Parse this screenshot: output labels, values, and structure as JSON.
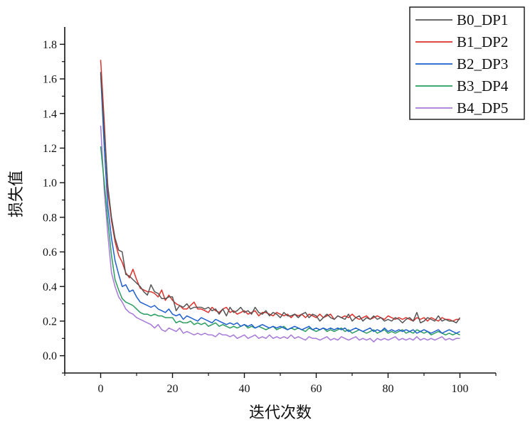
{
  "chart_data": {
    "type": "line",
    "xlabel": "迭代次数",
    "ylabel": "损失值",
    "xlim": [
      -10,
      110
    ],
    "ylim": [
      -0.1,
      1.9
    ],
    "x_ticks": [
      0,
      20,
      40,
      60,
      80,
      100
    ],
    "y_ticks": [
      0.0,
      0.2,
      0.4,
      0.6,
      0.8,
      1.0,
      1.2,
      1.4,
      1.6,
      1.8
    ],
    "x_tick_labels": [
      "0",
      "20",
      "40",
      "60",
      "80",
      "100"
    ],
    "y_tick_labels": [
      "0.0",
      "0.2",
      "0.4",
      "0.6",
      "0.8",
      "1.0",
      "1.2",
      "1.4",
      "1.6",
      "1.8"
    ],
    "grid": false,
    "legend_position": "top-right",
    "x": [
      0,
      1,
      2,
      3,
      4,
      5,
      6,
      7,
      8,
      9,
      10,
      11,
      12,
      13,
      14,
      15,
      16,
      17,
      18,
      19,
      20,
      21,
      22,
      23,
      24,
      25,
      26,
      27,
      28,
      29,
      30,
      31,
      32,
      33,
      34,
      35,
      36,
      37,
      38,
      39,
      40,
      41,
      42,
      43,
      44,
      45,
      46,
      47,
      48,
      49,
      50,
      51,
      52,
      53,
      54,
      55,
      56,
      57,
      58,
      59,
      60,
      61,
      62,
      63,
      64,
      65,
      66,
      67,
      68,
      69,
      70,
      71,
      72,
      73,
      74,
      75,
      76,
      77,
      78,
      79,
      80,
      81,
      82,
      83,
      84,
      85,
      86,
      87,
      88,
      89,
      90,
      91,
      92,
      93,
      94,
      95,
      96,
      97,
      98,
      99,
      100
    ],
    "series": [
      {
        "name": "B0_DP1",
        "color": "#555555",
        "values": [
          1.64,
          1.3,
          0.98,
          0.8,
          0.68,
          0.61,
          0.6,
          0.47,
          0.46,
          0.44,
          0.42,
          0.4,
          0.37,
          0.35,
          0.41,
          0.37,
          0.36,
          0.33,
          0.33,
          0.34,
          0.34,
          0.26,
          0.29,
          0.28,
          0.3,
          0.27,
          0.28,
          0.28,
          0.28,
          0.27,
          0.28,
          0.26,
          0.27,
          0.24,
          0.27,
          0.23,
          0.28,
          0.25,
          0.26,
          0.28,
          0.25,
          0.26,
          0.24,
          0.28,
          0.25,
          0.24,
          0.26,
          0.23,
          0.25,
          0.24,
          0.22,
          0.25,
          0.23,
          0.23,
          0.24,
          0.22,
          0.24,
          0.25,
          0.22,
          0.24,
          0.23,
          0.2,
          0.22,
          0.24,
          0.22,
          0.21,
          0.23,
          0.22,
          0.21,
          0.24,
          0.2,
          0.22,
          0.23,
          0.2,
          0.22,
          0.21,
          0.23,
          0.21,
          0.22,
          0.2,
          0.21,
          0.2,
          0.22,
          0.21,
          0.19,
          0.21,
          0.22,
          0.2,
          0.25,
          0.19,
          0.2,
          0.22,
          0.21,
          0.2,
          0.23,
          0.2,
          0.21,
          0.2,
          0.2,
          0.19,
          0.22
        ]
      },
      {
        "name": "B1_DP2",
        "color": "#e0302a",
        "values": [
          1.71,
          1.35,
          0.95,
          0.78,
          0.66,
          0.58,
          0.54,
          0.48,
          0.45,
          0.5,
          0.44,
          0.39,
          0.38,
          0.37,
          0.37,
          0.36,
          0.34,
          0.38,
          0.32,
          0.35,
          0.32,
          0.3,
          0.29,
          0.27,
          0.27,
          0.29,
          0.31,
          0.27,
          0.27,
          0.26,
          0.25,
          0.28,
          0.26,
          0.25,
          0.27,
          0.28,
          0.25,
          0.26,
          0.24,
          0.25,
          0.26,
          0.24,
          0.25,
          0.26,
          0.23,
          0.25,
          0.25,
          0.24,
          0.23,
          0.25,
          0.24,
          0.23,
          0.24,
          0.22,
          0.24,
          0.23,
          0.24,
          0.22,
          0.24,
          0.23,
          0.22,
          0.24,
          0.22,
          0.23,
          0.24,
          0.21,
          0.23,
          0.22,
          0.23,
          0.22,
          0.24,
          0.22,
          0.21,
          0.22,
          0.23,
          0.21,
          0.22,
          0.23,
          0.22,
          0.21,
          0.23,
          0.22,
          0.21,
          0.22,
          0.21,
          0.22,
          0.21,
          0.2,
          0.22,
          0.21,
          0.22,
          0.2,
          0.22,
          0.21,
          0.2,
          0.22,
          0.21,
          0.21,
          0.2,
          0.21,
          0.21
        ]
      },
      {
        "name": "B2_DP3",
        "color": "#1f5fcf",
        "values": [
          1.63,
          1.2,
          0.86,
          0.68,
          0.55,
          0.47,
          0.4,
          0.41,
          0.37,
          0.38,
          0.34,
          0.31,
          0.3,
          0.29,
          0.28,
          0.29,
          0.27,
          0.26,
          0.25,
          0.27,
          0.24,
          0.23,
          0.24,
          0.21,
          0.23,
          0.22,
          0.21,
          0.2,
          0.22,
          0.21,
          0.2,
          0.19,
          0.21,
          0.2,
          0.19,
          0.18,
          0.19,
          0.18,
          0.19,
          0.17,
          0.18,
          0.17,
          0.18,
          0.16,
          0.17,
          0.18,
          0.17,
          0.16,
          0.17,
          0.16,
          0.17,
          0.16,
          0.15,
          0.16,
          0.17,
          0.16,
          0.15,
          0.16,
          0.17,
          0.15,
          0.16,
          0.15,
          0.16,
          0.15,
          0.16,
          0.15,
          0.16,
          0.15,
          0.16,
          0.14,
          0.15,
          0.16,
          0.15,
          0.14,
          0.15,
          0.16,
          0.14,
          0.15,
          0.14,
          0.16,
          0.14,
          0.15,
          0.14,
          0.15,
          0.14,
          0.15,
          0.14,
          0.15,
          0.13,
          0.14,
          0.15,
          0.14,
          0.13,
          0.14,
          0.15,
          0.13,
          0.14,
          0.15,
          0.14,
          0.13,
          0.14
        ]
      },
      {
        "name": "B3_DP4",
        "color": "#2a9d5f",
        "values": [
          1.21,
          1.0,
          0.78,
          0.58,
          0.44,
          0.38,
          0.33,
          0.31,
          0.3,
          0.29,
          0.27,
          0.25,
          0.24,
          0.24,
          0.23,
          0.24,
          0.23,
          0.23,
          0.22,
          0.22,
          0.22,
          0.19,
          0.2,
          0.19,
          0.19,
          0.2,
          0.18,
          0.19,
          0.18,
          0.19,
          0.17,
          0.18,
          0.19,
          0.17,
          0.18,
          0.17,
          0.16,
          0.17,
          0.16,
          0.17,
          0.18,
          0.16,
          0.17,
          0.16,
          0.17,
          0.16,
          0.15,
          0.16,
          0.17,
          0.15,
          0.16,
          0.17,
          0.15,
          0.16,
          0.15,
          0.16,
          0.15,
          0.14,
          0.16,
          0.15,
          0.14,
          0.15,
          0.16,
          0.14,
          0.15,
          0.14,
          0.15,
          0.16,
          0.14,
          0.15,
          0.13,
          0.14,
          0.15,
          0.14,
          0.13,
          0.14,
          0.15,
          0.13,
          0.14,
          0.15,
          0.13,
          0.14,
          0.13,
          0.14,
          0.15,
          0.13,
          0.14,
          0.13,
          0.15,
          0.14,
          0.13,
          0.14,
          0.12,
          0.13,
          0.14,
          0.13,
          0.12,
          0.13,
          0.12,
          0.13,
          0.12
        ]
      },
      {
        "name": "B4_DP5",
        "color": "#a779d9",
        "values": [
          1.33,
          0.95,
          0.7,
          0.48,
          0.4,
          0.34,
          0.31,
          0.27,
          0.25,
          0.24,
          0.22,
          0.21,
          0.2,
          0.19,
          0.18,
          0.16,
          0.18,
          0.15,
          0.14,
          0.16,
          0.15,
          0.14,
          0.16,
          0.13,
          0.14,
          0.13,
          0.12,
          0.13,
          0.12,
          0.13,
          0.12,
          0.12,
          0.11,
          0.13,
          0.12,
          0.12,
          0.11,
          0.12,
          0.1,
          0.11,
          0.12,
          0.1,
          0.11,
          0.12,
          0.1,
          0.11,
          0.1,
          0.12,
          0.1,
          0.11,
          0.1,
          0.11,
          0.1,
          0.12,
          0.1,
          0.11,
          0.1,
          0.09,
          0.11,
          0.1,
          0.1,
          0.09,
          0.1,
          0.11,
          0.09,
          0.1,
          0.09,
          0.11,
          0.1,
          0.09,
          0.1,
          0.11,
          0.09,
          0.1,
          0.09,
          0.1,
          0.08,
          0.1,
          0.09,
          0.1,
          0.09,
          0.1,
          0.11,
          0.09,
          0.1,
          0.09,
          0.1,
          0.09,
          0.11,
          0.09,
          0.1,
          0.09,
          0.1,
          0.09,
          0.1,
          0.11,
          0.09,
          0.1,
          0.09,
          0.1,
          0.1
        ]
      }
    ]
  }
}
